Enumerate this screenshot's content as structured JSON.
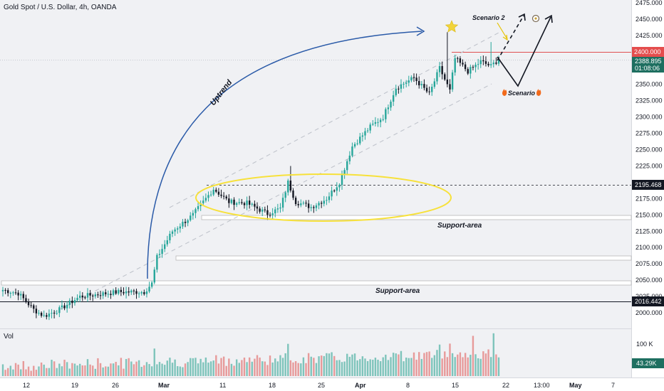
{
  "header": {
    "symbol_title": "Gold Spot / U.S. Dollar, 4h, OANDA"
  },
  "volume_pane": {
    "label": "Vol",
    "scale_label": "100 K",
    "current_volume": "43.29K"
  },
  "price_axis": {
    "ticks": [
      "2475.000",
      "2450.000",
      "2425.000",
      "2400.000",
      "2375.000",
      "2350.000",
      "2325.000",
      "2300.000",
      "2275.000",
      "2250.000",
      "2225.000",
      "2200.000",
      "2175.000",
      "2150.000",
      "2125.000",
      "2100.000",
      "2075.000",
      "2050.000",
      "2025.000",
      "2000.000"
    ],
    "level_2400": "2400.000",
    "current_price": "2388.895",
    "countdown": "01:08:06",
    "level_2195": "2195.468",
    "level_2016": "2016.442"
  },
  "time_axis": {
    "labels": [
      "12",
      "19",
      "26",
      "Mar",
      "11",
      "18",
      "25",
      "Apr",
      "8",
      "15",
      "22",
      "13:00",
      "May",
      "7"
    ]
  },
  "annotations": {
    "uptrend": "Uptrend",
    "scenario_2": "Scenario 2",
    "scenario_1": "Scenario 1",
    "support_upper": "Support-area",
    "support_lower": "Support-area"
  },
  "colors": {
    "up": "#26a69a",
    "down": "#131722",
    "resistance_line": "#e05050",
    "current_price_bg": "#1e6f60",
    "level_2400_bg": "#e44d4d",
    "ellipse": "#f7e13a",
    "curve_arrow": "#2a5aa8"
  },
  "chart_data": {
    "type": "candlestick",
    "price_range": [
      1985,
      2480
    ],
    "current_price": 2388.895,
    "horizontal_levels": [
      2400.0,
      2195.468,
      2016.442
    ],
    "support_bands": [
      [
        2143,
        2147
      ],
      [
        2081,
        2085
      ],
      [
        2045,
        2049
      ]
    ],
    "anchors": [
      {
        "bar": 0,
        "price": 2035
      },
      {
        "bar": 6,
        "price": 2030
      },
      {
        "bar": 12,
        "price": 2005
      },
      {
        "bar": 16,
        "price": 1995
      },
      {
        "bar": 22,
        "price": 2005
      },
      {
        "bar": 30,
        "price": 2025
      },
      {
        "bar": 45,
        "price": 2032
      },
      {
        "bar": 55,
        "price": 2032
      },
      {
        "bar": 58,
        "price": 2045
      },
      {
        "bar": 60,
        "price": 2085
      },
      {
        "bar": 66,
        "price": 2125
      },
      {
        "bar": 74,
        "price": 2150
      },
      {
        "bar": 82,
        "price": 2190
      },
      {
        "bar": 88,
        "price": 2170
      },
      {
        "bar": 95,
        "price": 2168
      },
      {
        "bar": 103,
        "price": 2152
      },
      {
        "bar": 108,
        "price": 2160
      },
      {
        "bar": 111,
        "price": 2200
      },
      {
        "bar": 114,
        "price": 2170
      },
      {
        "bar": 120,
        "price": 2162
      },
      {
        "bar": 126,
        "price": 2175
      },
      {
        "bar": 131,
        "price": 2200
      },
      {
        "bar": 136,
        "price": 2255
      },
      {
        "bar": 143,
        "price": 2285
      },
      {
        "bar": 148,
        "price": 2300
      },
      {
        "bar": 153,
        "price": 2345
      },
      {
        "bar": 160,
        "price": 2360
      },
      {
        "bar": 166,
        "price": 2335
      },
      {
        "bar": 170,
        "price": 2375
      },
      {
        "bar": 174,
        "price": 2340
      },
      {
        "bar": 176,
        "price": 2390
      },
      {
        "bar": 181,
        "price": 2370
      },
      {
        "bar": 186,
        "price": 2385
      },
      {
        "bar": 190,
        "price": 2378
      },
      {
        "bar": 193,
        "price": 2389
      }
    ]
  }
}
